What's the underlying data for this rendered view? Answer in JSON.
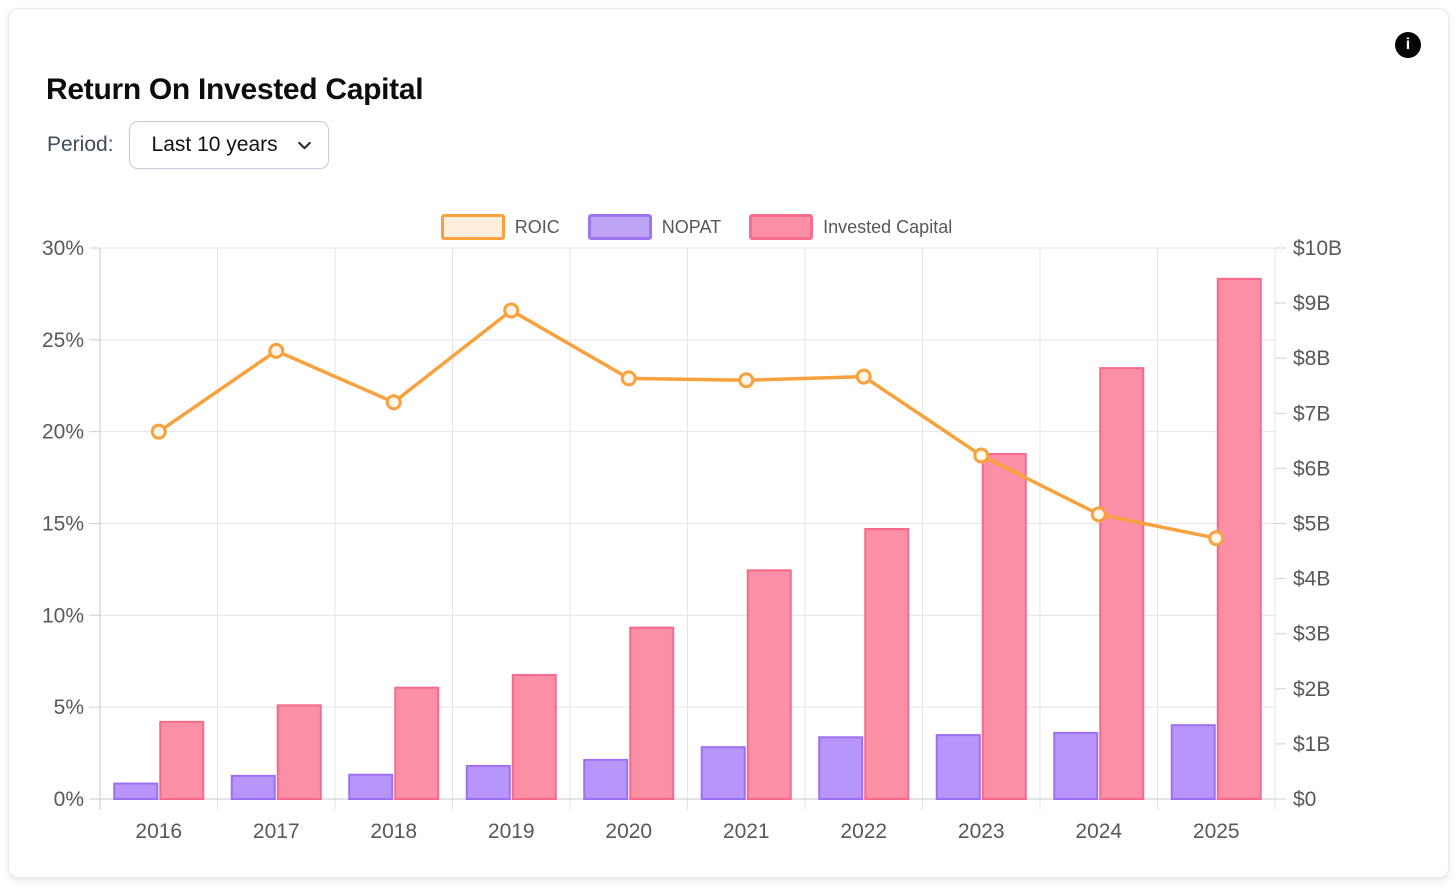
{
  "header": {
    "title": "Return On Invested Capital",
    "period_label": "Period:",
    "period_value": "Last 10 years",
    "info_glyph": "i"
  },
  "legend": [
    {
      "label": "ROIC",
      "fill": "#fdeedd",
      "border": "#f9a13c"
    },
    {
      "label": "NOPAT",
      "fill": "#bea4f5",
      "border": "#9d75f0"
    },
    {
      "label": "Invested Capital",
      "fill": "#fa8fa5",
      "border": "#f76d8d"
    }
  ],
  "chart_data": {
    "type": "combo",
    "title": "Return On Invested Capital",
    "categories": [
      "2016",
      "2017",
      "2018",
      "2019",
      "2020",
      "2021",
      "2022",
      "2023",
      "2024",
      "2025"
    ],
    "series": [
      {
        "name": "ROIC",
        "type": "line",
        "axis": "left",
        "unit": "%",
        "color": "#f9a13c",
        "marker_fill": "#fff6ea",
        "values": [
          20.0,
          24.4,
          21.6,
          26.6,
          22.9,
          22.8,
          23.0,
          18.7,
          15.5,
          14.2
        ]
      },
      {
        "name": "NOPAT",
        "type": "bar",
        "axis": "right",
        "unit": "$B",
        "fill": "#b795fa",
        "border": "#9d6ff2",
        "values": [
          0.28,
          0.42,
          0.44,
          0.6,
          0.71,
          0.94,
          1.12,
          1.16,
          1.2,
          1.34
        ]
      },
      {
        "name": "Invested Capital",
        "type": "bar",
        "axis": "right",
        "unit": "$B",
        "fill": "#fa8fa5",
        "border": "#f7688a",
        "values": [
          1.4,
          1.7,
          2.02,
          2.25,
          3.11,
          4.15,
          4.9,
          6.26,
          7.82,
          9.44
        ]
      }
    ],
    "left_axis": {
      "title": "",
      "min": 0,
      "max": 30,
      "tick_labels": [
        "0%",
        "5%",
        "10%",
        "15%",
        "20%",
        "25%",
        "30%"
      ],
      "tick_values": [
        0,
        5,
        10,
        15,
        20,
        25,
        30
      ]
    },
    "right_axis": {
      "title": "",
      "min": 0,
      "max": 10,
      "tick_labels": [
        "$0",
        "$1B",
        "$2B",
        "$3B",
        "$4B",
        "$5B",
        "$6B",
        "$7B",
        "$8B",
        "$9B",
        "$10B"
      ],
      "tick_values": [
        0,
        1,
        2,
        3,
        4,
        5,
        6,
        7,
        8,
        9,
        10
      ]
    },
    "grid": true,
    "legend_position": "top-center"
  }
}
